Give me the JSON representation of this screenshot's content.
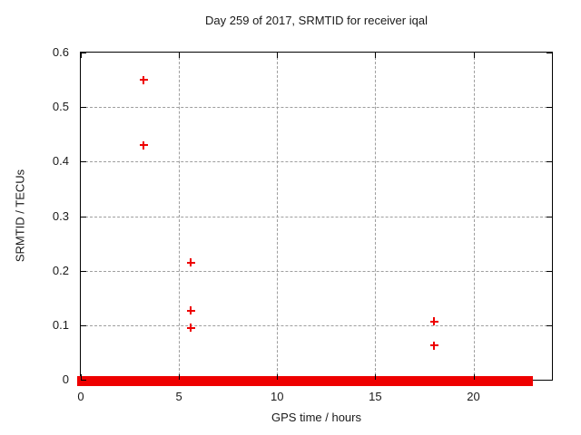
{
  "chart_data": {
    "type": "scatter",
    "title": "Day 259 of 2017, SRMTID for receiver iqal",
    "xlabel": "GPS time / hours",
    "ylabel": "SRMTID / TECUs",
    "xlim": [
      0,
      24
    ],
    "ylim": [
      0,
      0.6
    ],
    "xticks": {
      "values": [
        0,
        5,
        10,
        15,
        20
      ],
      "labels": [
        "0",
        "5",
        "10",
        "15",
        "20"
      ]
    },
    "yticks": {
      "values": [
        0,
        0.1,
        0.2,
        0.3,
        0.4,
        0.5,
        0.6
      ],
      "labels": [
        "0",
        "0.1",
        "0.2",
        "0.3",
        "0.4",
        "0.5",
        "0.6"
      ]
    },
    "grid": true,
    "grid_style": "dashed",
    "legend": "none",
    "marker": "plus",
    "series": [
      {
        "name": "SRMTID",
        "points": [
          [
            3.2,
            0.55
          ],
          [
            3.2,
            0.43
          ],
          [
            5.6,
            0.215
          ],
          [
            5.6,
            0.127
          ],
          [
            5.6,
            0.095
          ],
          [
            18.0,
            0.107
          ],
          [
            18.0,
            0.063
          ]
        ]
      }
    ],
    "zero_band": {
      "description": "dense overlapping markers at SRMTID approx 0",
      "x_start": 0,
      "x_end": 22.85,
      "y": 0
    }
  },
  "colors": {
    "marker": "#ee0000",
    "grid": "#9e9e9e",
    "axis": "#000000",
    "text": "#1a1a1a",
    "background": "#ffffff"
  }
}
